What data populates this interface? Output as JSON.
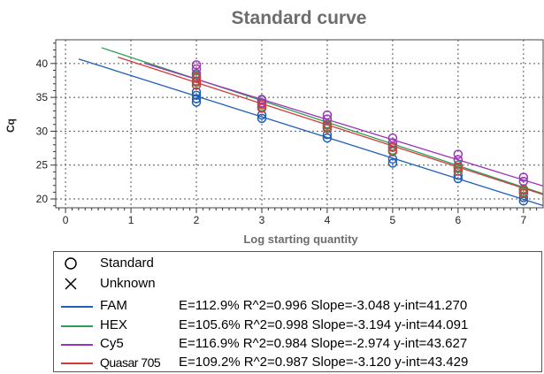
{
  "chart_data": {
    "type": "scatter",
    "title": "Standard curve",
    "xlabel": "Log starting quantity",
    "ylabel": "Cq",
    "xlim": [
      -0.15,
      7.3
    ],
    "ylim": [
      18.7,
      43.5
    ],
    "x_ticks": [
      0,
      1,
      2,
      3,
      4,
      5,
      6,
      7
    ],
    "y_ticks": [
      20,
      25,
      30,
      35,
      40
    ],
    "grid": true,
    "legend_position": "bottom",
    "marker_legend": [
      {
        "symbol": "circle",
        "label": "Standard"
      },
      {
        "symbol": "cross",
        "label": "Unknown"
      }
    ],
    "series": [
      {
        "name": "FAM",
        "color": "#1f5fb8",
        "x_range": [
          0.2,
          7.3
        ],
        "stats": "E=112.9% R^2=0.996 Slope=-3.048 y-int=41.270",
        "points": [
          [
            2,
            34.3
          ],
          [
            2,
            34.8
          ],
          [
            2,
            35.3
          ],
          [
            2,
            35.8
          ],
          [
            3,
            31.9
          ],
          [
            3,
            32.4
          ],
          [
            4,
            29.0
          ],
          [
            4,
            29.5
          ],
          [
            5,
            25.3
          ],
          [
            5,
            25.9
          ],
          [
            6,
            23.0
          ],
          [
            6,
            23.5
          ],
          [
            7,
            19.7
          ],
          [
            7,
            20.2
          ]
        ]
      },
      {
        "name": "HEX",
        "color": "#2e9e57",
        "x_range": [
          0.55,
          7.3
        ],
        "stats": "E=105.6% R^2=0.998 Slope=-3.194 y-int=44.091",
        "points": [
          [
            2,
            37.2
          ],
          [
            2,
            37.8
          ],
          [
            2,
            38.3
          ],
          [
            3,
            33.6
          ],
          [
            3,
            34.1
          ],
          [
            3,
            34.6
          ],
          [
            4,
            30.6
          ],
          [
            4,
            31.1
          ],
          [
            5,
            27.2
          ],
          [
            5,
            27.8
          ],
          [
            6,
            24.5
          ],
          [
            6,
            25.0
          ],
          [
            7,
            21.0
          ],
          [
            7,
            21.5
          ]
        ]
      },
      {
        "name": "Cy5",
        "color": "#9b34b8",
        "x_range": [
          1.2,
          7.3
        ],
        "stats": "E=116.9% R^2=0.984 Slope=-2.974 y-int=43.627",
        "points": [
          [
            2,
            38.5
          ],
          [
            2,
            39.2
          ],
          [
            2,
            39.8
          ],
          [
            3,
            34.2
          ],
          [
            3,
            34.7
          ],
          [
            4,
            31.8
          ],
          [
            4,
            32.4
          ],
          [
            5,
            28.3
          ],
          [
            5,
            29.0
          ],
          [
            6,
            25.8
          ],
          [
            6,
            26.6
          ],
          [
            7,
            22.6
          ],
          [
            7,
            23.2
          ]
        ]
      },
      {
        "name": "Quasar 705",
        "color": "#d43a3a",
        "x_range": [
          0.8,
          7.3
        ],
        "stats": "E=109.2% R^2=0.987 Slope=-3.120 y-int=43.429",
        "points": [
          [
            2,
            36.8
          ],
          [
            2,
            37.4
          ],
          [
            2,
            38.0
          ],
          [
            3,
            33.4
          ],
          [
            3,
            33.9
          ],
          [
            4,
            30.4
          ],
          [
            4,
            30.9
          ],
          [
            5,
            27.0
          ],
          [
            5,
            27.6
          ],
          [
            6,
            24.1
          ],
          [
            6,
            24.7
          ],
          [
            7,
            20.8
          ],
          [
            7,
            21.3
          ]
        ]
      }
    ]
  }
}
